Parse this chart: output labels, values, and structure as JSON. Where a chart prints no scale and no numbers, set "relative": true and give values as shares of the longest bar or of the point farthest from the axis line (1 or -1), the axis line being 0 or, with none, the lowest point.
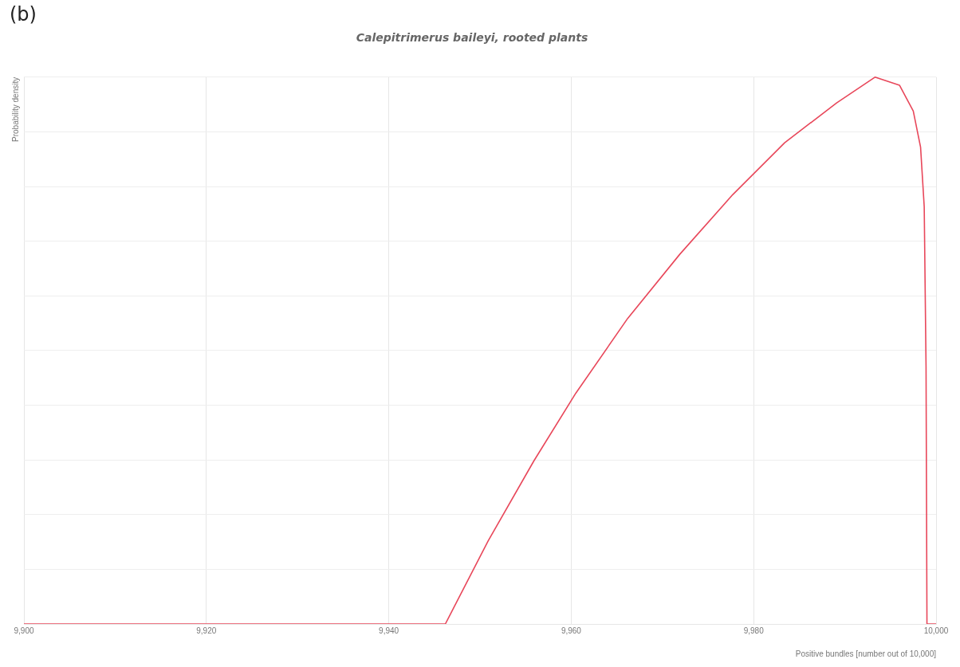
{
  "chart_data": {
    "type": "line",
    "title": "Calepitrimerus baileyi, rooted plants",
    "xlabel": "Positive bundles [number out of 10,000]",
    "ylabel": "Probability density",
    "annotations": [
      "(b)"
    ],
    "relative": true,
    "grid": true,
    "legend": false,
    "marker": "none",
    "line_style": "solid",
    "xlim": [
      9900,
      10000
    ],
    "xticks": [
      {
        "value": 9900,
        "label": "9,900"
      },
      {
        "value": 9920,
        "label": "9,920"
      },
      {
        "value": 9940,
        "label": "9,940"
      },
      {
        "value": 9960,
        "label": "9,960"
      },
      {
        "value": 9980,
        "label": "9,980"
      },
      {
        "value": 10000,
        "label": "10,000"
      }
    ],
    "series": [
      {
        "color": "#e8475a",
        "x": [
          9900,
          9946.2,
          9950.9,
          9955.9,
          9960.5,
          9966.2,
          9971.9,
          9977.7,
          9983.4,
          9989.1,
          9993.3,
          9996.0,
          9997.5,
          9998.3,
          9998.7,
          9998.9,
          9999.0,
          10000
        ],
        "values": [
          0,
          0,
          0.152,
          0.298,
          0.422,
          0.559,
          0.676,
          0.785,
          0.88,
          0.953,
          1.0,
          0.985,
          0.938,
          0.872,
          0.763,
          0.471,
          0,
          0
        ]
      }
    ]
  }
}
